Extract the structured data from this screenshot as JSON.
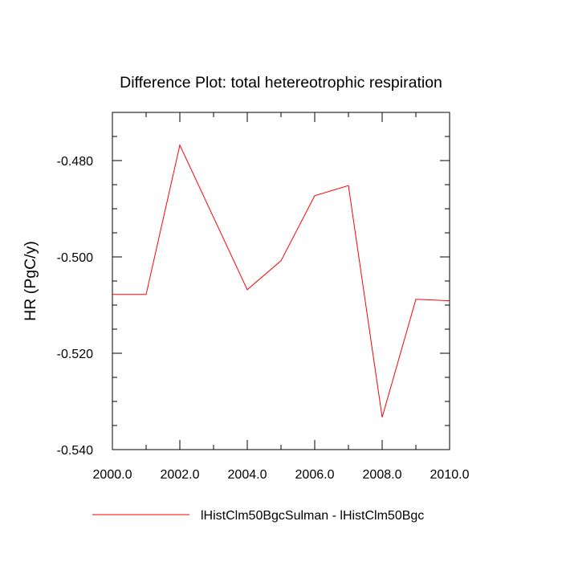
{
  "chart_data": {
    "type": "line",
    "title": "Difference Plot: total hetereotrophic respiration",
    "xlabel": "",
    "ylabel": "HR  (PgC/y)",
    "xlim": [
      2000,
      2010
    ],
    "ylim": [
      -0.54,
      -0.47
    ],
    "x_ticks": [
      "2000.0",
      "2002.0",
      "2004.0",
      "2006.0",
      "2008.0",
      "2010.0"
    ],
    "y_ticks": [
      "-0.480",
      "-0.500",
      "-0.520",
      "-0.540"
    ],
    "grid": false,
    "legend_position": "bottom",
    "series": [
      {
        "name": "lHistClm50BgcSulman - lHistClm50Bgc",
        "color": "#ff0000",
        "x": [
          2000,
          2001,
          2002,
          2003,
          2004,
          2005,
          2006,
          2007,
          2008,
          2009,
          2010
        ],
        "y": [
          -0.5078,
          -0.5078,
          -0.4768,
          -0.4918,
          -0.5068,
          -0.5008,
          -0.4873,
          -0.4852,
          -0.5333,
          -0.5088,
          -0.5091
        ]
      }
    ]
  }
}
